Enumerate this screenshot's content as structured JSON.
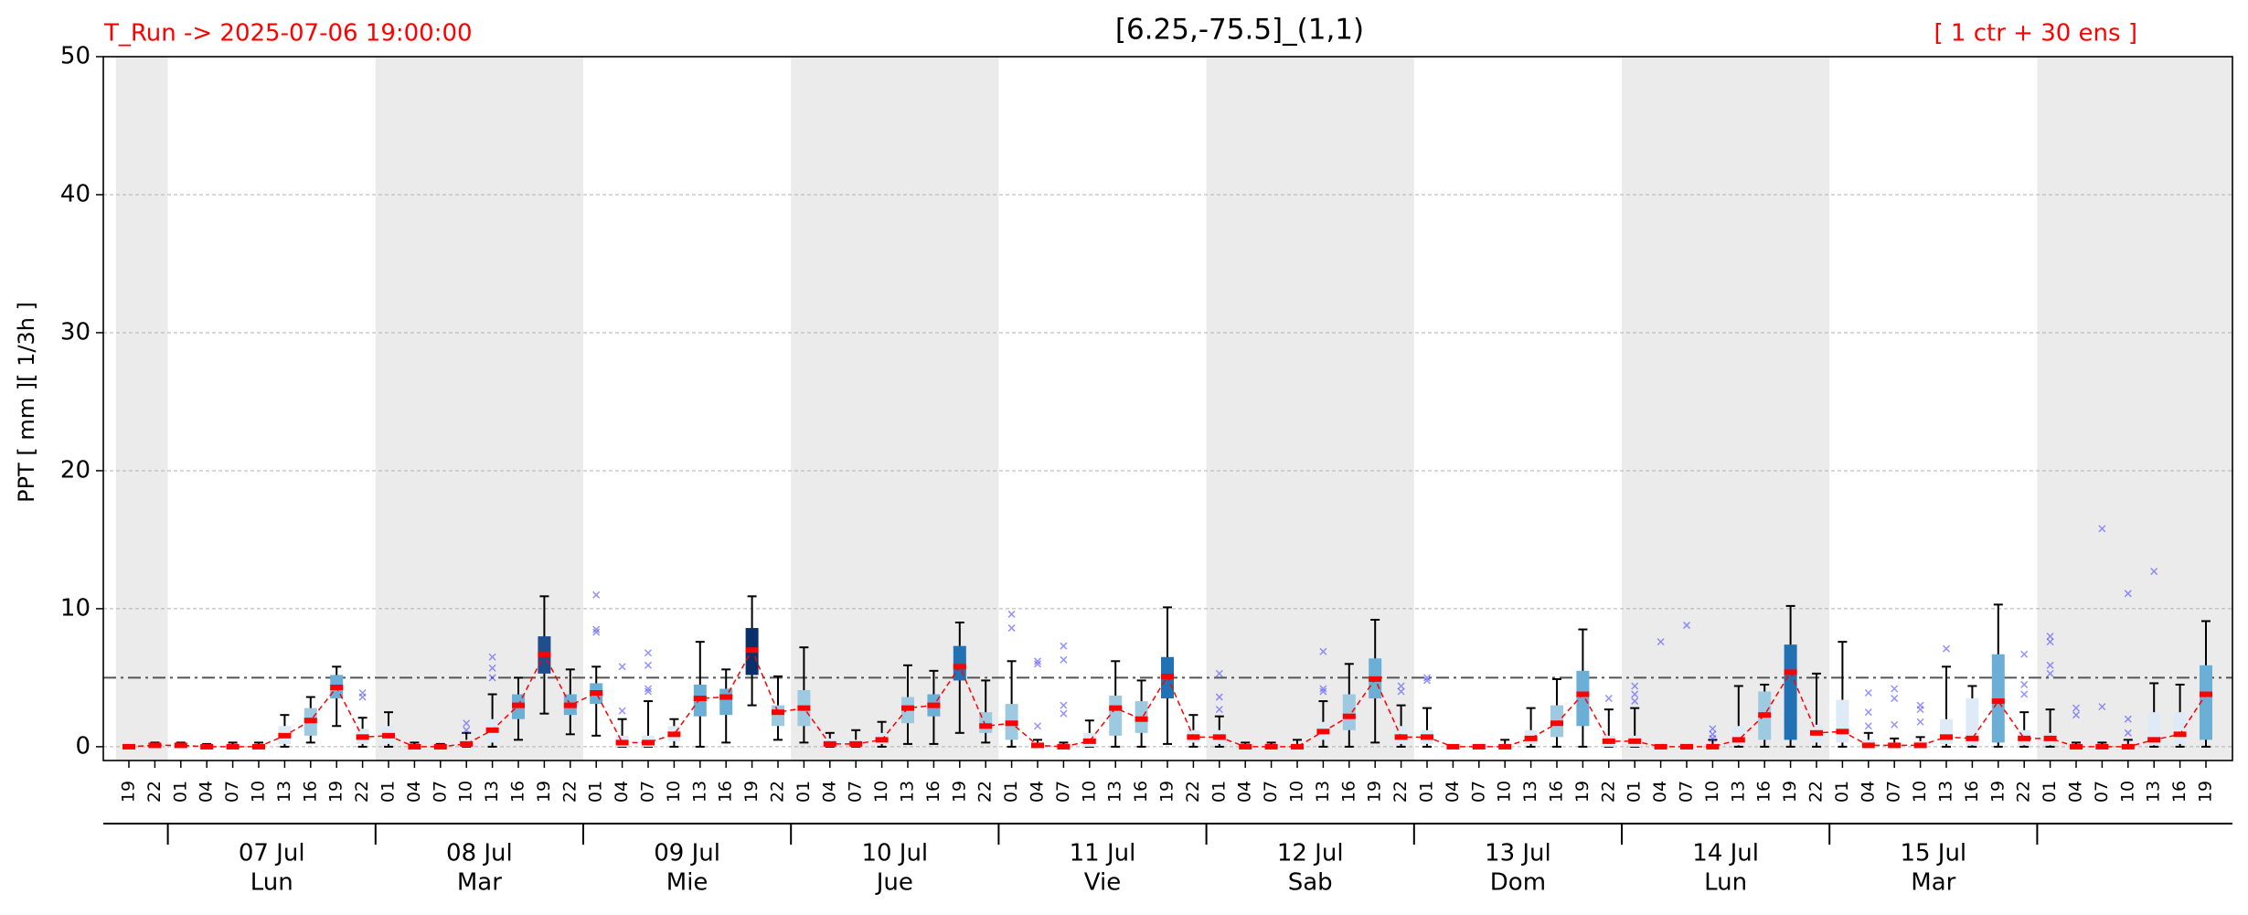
{
  "chart_data": {
    "type": "boxplot",
    "title": "[6.25,-75.5]_(1,1)",
    "run_label": "T_Run -> 2025-07-06  19:00:00",
    "ensemble_label": "[ 1 ctr + 30 ens ]",
    "y_label": "PPT  [ mm ][ 1/3h ]",
    "ylim": [
      -1,
      50
    ],
    "yticks": [
      0,
      10,
      20,
      30,
      40,
      50
    ],
    "grid": true,
    "threshold": 5,
    "median_color": "#ff0000",
    "outlier_color": "#4d4dff",
    "x_labels": [
      "19",
      "22",
      "01",
      "04",
      "07",
      "10",
      "13",
      "16",
      "19",
      "22",
      "01",
      "04",
      "07",
      "10",
      "13",
      "16",
      "19",
      "22",
      "01",
      "04",
      "07",
      "10",
      "13",
      "16",
      "19",
      "22",
      "01",
      "04",
      "07",
      "10",
      "13",
      "16",
      "19",
      "22",
      "01",
      "04",
      "07",
      "10",
      "13",
      "16",
      "19",
      "22",
      "01",
      "04",
      "07",
      "10",
      "13",
      "16",
      "19",
      "22",
      "01",
      "04",
      "07",
      "10",
      "13",
      "16",
      "19",
      "22",
      "01",
      "04",
      "07",
      "10",
      "13",
      "16",
      "19",
      "22",
      "01",
      "04",
      "07",
      "10",
      "13",
      "16",
      "19",
      "22",
      "01",
      "04",
      "07",
      "10",
      "13",
      "16",
      "19"
    ],
    "date_groups": [
      {
        "date": "07 Jul",
        "day": "Lun"
      },
      {
        "date": "08 Jul",
        "day": "Mar"
      },
      {
        "date": "09 Jul",
        "day": "Mie"
      },
      {
        "date": "10 Jul",
        "day": "Jue"
      },
      {
        "date": "11 Jul",
        "day": "Vie"
      },
      {
        "date": "12 Jul",
        "day": "Sab"
      },
      {
        "date": "13 Jul",
        "day": "Dom"
      },
      {
        "date": "14 Jul",
        "day": "Lun"
      },
      {
        "date": "15 Jul",
        "day": "Mar"
      }
    ],
    "median": [
      0,
      0.1,
      0.1,
      0,
      0,
      0,
      0.8,
      1.9,
      4.3,
      0.7,
      0.8,
      0,
      0,
      0.2,
      1.2,
      3.0,
      6.7,
      3.0,
      3.9,
      0.3,
      0.3,
      0.9,
      3.5,
      3.6,
      7.0,
      2.5,
      2.8,
      0.2,
      0.2,
      0.5,
      2.8,
      3.0,
      5.8,
      1.5,
      1.7,
      0.1,
      0,
      0.4,
      2.8,
      2.0,
      5.1,
      0.7,
      0.7,
      0,
      0,
      0,
      1.1,
      2.2,
      4.9,
      0.7,
      0.7,
      0,
      0,
      0,
      0.6,
      1.7,
      3.8,
      0.4,
      0.4,
      0,
      0,
      0,
      0.5,
      2.3,
      5.4,
      1.0,
      1.1,
      0.1,
      0.1,
      0.1,
      0.7,
      0.6,
      3.3,
      0.6,
      0.6,
      0,
      0,
      0,
      0.5,
      0.9,
      3.8
    ],
    "q1": [
      0,
      0,
      0,
      0,
      0,
      0,
      0.2,
      0.8,
      3.5,
      0.2,
      0.2,
      0,
      0,
      0,
      0.3,
      2.0,
      5.3,
      2.3,
      3.1,
      0,
      0,
      0.4,
      2.2,
      2.3,
      5.2,
      1.5,
      1.5,
      0,
      0,
      0.2,
      1.7,
      2.2,
      4.8,
      1.0,
      0.5,
      0,
      0,
      0,
      0.8,
      1.0,
      3.5,
      0.3,
      0.2,
      0,
      0,
      0,
      0.5,
      1.2,
      3.5,
      0.2,
      0.2,
      0,
      0,
      0,
      0.2,
      0.7,
      1.5,
      0,
      0,
      0,
      0,
      0,
      0.1,
      0.5,
      0.5,
      0.3,
      0.3,
      0,
      0,
      0,
      0.2,
      0.1,
      0.3,
      0.1,
      0.1,
      0,
      0,
      0,
      0.1,
      0.2,
      0.5
    ],
    "q3": [
      0,
      0.2,
      0.2,
      0,
      0,
      0,
      1.5,
      2.8,
      5.2,
      1.3,
      1.5,
      0.1,
      0,
      0.5,
      2.0,
      3.8,
      8.0,
      3.8,
      4.6,
      0.8,
      0.8,
      1.5,
      4.5,
      4.2,
      8.6,
      3.0,
      4.1,
      0.6,
      0.5,
      1.0,
      3.6,
      3.8,
      7.3,
      2.5,
      3.1,
      0.3,
      0.1,
      1.0,
      3.7,
      3.3,
      6.5,
      1.2,
      1.2,
      0.1,
      0.1,
      0.2,
      1.8,
      3.8,
      6.4,
      1.5,
      1.2,
      0,
      0,
      0.2,
      1.2,
      3.0,
      5.5,
      0.8,
      0.8,
      0,
      0,
      0.2,
      1.5,
      4.0,
      7.4,
      1.6,
      3.4,
      0.5,
      0.3,
      0.4,
      2.0,
      3.5,
      6.7,
      1.2,
      1.0,
      0.1,
      0.1,
      0.2,
      2.5,
      2.5,
      5.9
    ],
    "low": [
      0,
      0,
      0,
      0,
      0,
      0,
      0,
      0.3,
      1.5,
      0,
      0,
      0,
      0,
      0,
      0,
      0.5,
      2.4,
      0.9,
      0.8,
      0,
      0,
      0,
      0,
      0.3,
      3.0,
      0.5,
      0.3,
      0,
      0,
      0,
      0.2,
      0.2,
      1.0,
      0.3,
      0,
      0,
      0,
      0,
      0,
      0,
      0.2,
      0,
      0,
      0,
      0,
      0,
      0,
      0,
      0.3,
      0,
      0,
      0,
      0,
      0,
      0,
      0,
      0,
      0,
      0,
      0,
      0,
      0,
      0,
      0,
      0,
      0,
      0,
      0,
      0,
      0,
      0,
      0,
      0,
      0,
      0,
      0,
      0,
      0,
      0,
      0,
      0
    ],
    "high": [
      0,
      0.3,
      0.3,
      0.2,
      0.3,
      0.3,
      2.3,
      3.6,
      5.8,
      2.1,
      2.5,
      0.3,
      0.2,
      1.0,
      3.8,
      5.0,
      10.9,
      5.6,
      5.8,
      2.0,
      3.3,
      2.0,
      7.6,
      5.6,
      10.9,
      5.1,
      7.2,
      1.0,
      1.2,
      1.8,
      5.9,
      5.5,
      9.0,
      4.8,
      6.2,
      0.5,
      0.3,
      1.9,
      6.2,
      4.8,
      10.1,
      2.3,
      2.2,
      0.3,
      0.3,
      0.5,
      3.3,
      6.0,
      9.2,
      3.0,
      2.8,
      0.1,
      0.1,
      0.5,
      2.8,
      4.9,
      8.5,
      2.7,
      2.8,
      0.1,
      0.1,
      0.5,
      4.4,
      4.5,
      10.2,
      5.3,
      7.6,
      1.0,
      0.6,
      0.7,
      5.8,
      4.4,
      10.3,
      2.5,
      2.7,
      0.3,
      0.3,
      0.5,
      4.6,
      4.5,
      9.1
    ],
    "outliers": [
      [],
      [],
      [],
      [],
      [],
      [],
      [],
      [],
      [],
      [
        3.6,
        3.9
      ],
      [],
      [],
      [],
      [
        1.2,
        1.7
      ],
      [
        5.0,
        5.7,
        6.5
      ],
      [],
      [],
      [],
      [
        8.3,
        8.5,
        11.0
      ],
      [
        2.6,
        5.8
      ],
      [
        4.0,
        4.2,
        5.9,
        6.8
      ],
      [],
      [],
      [],
      [],
      [],
      [],
      [],
      [],
      [],
      [],
      [],
      [],
      [],
      [
        8.6,
        9.6
      ],
      [
        1.5,
        6.0,
        6.2
      ],
      [
        2.4,
        3.0,
        6.3,
        7.3
      ],
      [],
      [],
      [],
      [],
      [],
      [
        2.7,
        3.6,
        5.3
      ],
      [],
      [],
      [],
      [
        4.0,
        4.2,
        6.9
      ],
      [],
      [],
      [
        4.0,
        4.4
      ],
      [
        4.8,
        5.0
      ],
      [],
      [],
      [],
      [],
      [],
      [],
      [
        3.5
      ],
      [
        3.3,
        3.8,
        4.4
      ],
      [
        7.6
      ],
      [
        8.8
      ],
      [
        0.6,
        0.9,
        1.3
      ],
      [],
      [],
      [],
      [],
      [],
      [
        1.5,
        2.5,
        3.9
      ],
      [
        1.6,
        3.5,
        4.2
      ],
      [
        1.8,
        2.7,
        3.0
      ],
      [
        7.1
      ],
      [],
      [],
      [
        3.8,
        4.5,
        6.7
      ],
      [
        5.3,
        5.9,
        7.6,
        8.0
      ],
      [
        2.3,
        2.8
      ],
      [
        2.9,
        15.8
      ],
      [
        1.0,
        2.0,
        11.1
      ],
      [
        12.7
      ],
      [],
      []
    ]
  }
}
